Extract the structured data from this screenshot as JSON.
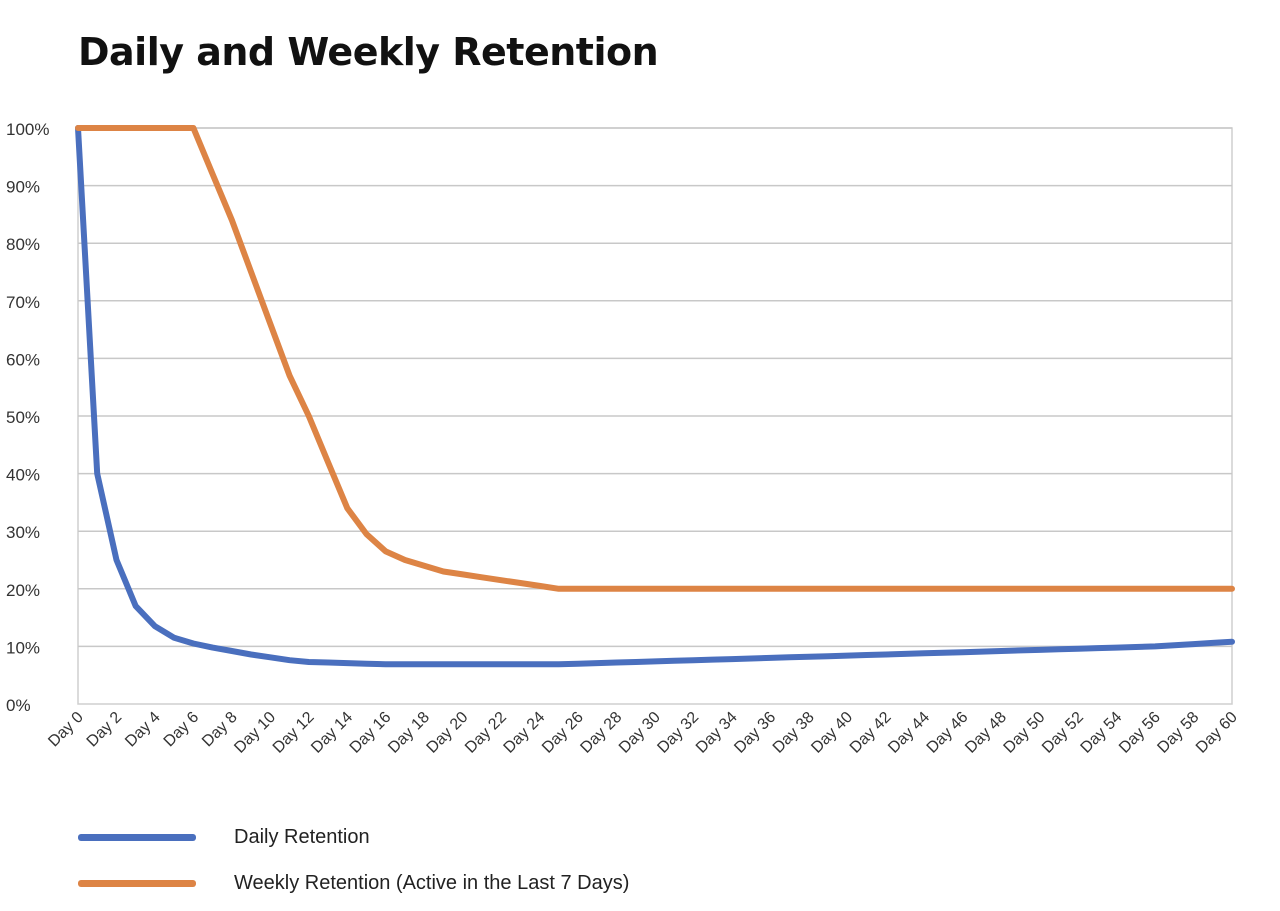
{
  "chart_data": {
    "type": "line",
    "title": "Daily and Weekly Retention",
    "xlabel": "",
    "ylabel": "",
    "ylim": [
      0,
      100
    ],
    "y_ticks": [
      "0%",
      "10%",
      "20%",
      "30%",
      "40%",
      "50%",
      "60%",
      "70%",
      "80%",
      "90%",
      "100%"
    ],
    "x_ticks": [
      "Day 0",
      "Day 2",
      "Day 4",
      "Day 6",
      "Day 8",
      "Day 10",
      "Day 12",
      "Day 14",
      "Day 16",
      "Day 18",
      "Day 20",
      "Day 22",
      "Day 24",
      "Day 26",
      "Day 28",
      "Day 30",
      "Day 32",
      "Day 34",
      "Day 36",
      "Day 38",
      "Day 40",
      "Day 42",
      "Day 44",
      "Day 46",
      "Day 48",
      "Day 50",
      "Day 52",
      "Day 54",
      "Day 56",
      "Day 58",
      "Day 60"
    ],
    "x": [
      0,
      1,
      2,
      3,
      4,
      5,
      6,
      7,
      8,
      9,
      10,
      11,
      12,
      13,
      14,
      15,
      16,
      17,
      18,
      19,
      20,
      21,
      22,
      23,
      24,
      25,
      26,
      27,
      28,
      29,
      30,
      31,
      32,
      33,
      34,
      35,
      36,
      37,
      38,
      39,
      40,
      41,
      42,
      43,
      44,
      45,
      46,
      47,
      48,
      49,
      50,
      51,
      52,
      53,
      54,
      55,
      56,
      57,
      58,
      59,
      60
    ],
    "grid": true,
    "legend_position": "bottom-left",
    "series": [
      {
        "name": "Daily Retention",
        "color": "#4a6fbe",
        "values": [
          100,
          40,
          25,
          17,
          13.5,
          11.5,
          10.5,
          9.8,
          9.2,
          8.6,
          8.1,
          7.6,
          7.3,
          7.2,
          7.1,
          7.0,
          6.9,
          6.9,
          6.9,
          6.9,
          6.9,
          6.9,
          6.9,
          6.9,
          6.9,
          6.9,
          7.0,
          7.1,
          7.2,
          7.3,
          7.4,
          7.5,
          7.6,
          7.7,
          7.8,
          7.9,
          8.0,
          8.1,
          8.2,
          8.3,
          8.4,
          8.5,
          8.6,
          8.7,
          8.8,
          8.9,
          9.0,
          9.1,
          9.2,
          9.3,
          9.4,
          9.5,
          9.6,
          9.7,
          9.8,
          9.9,
          10.0,
          10.2,
          10.4,
          10.6,
          10.8
        ]
      },
      {
        "name": "Weekly Retention (Active in the Last 7 Days)",
        "color": "#dd8445",
        "values": [
          100,
          100,
          100,
          100,
          100,
          100,
          100,
          92,
          84,
          75,
          66,
          57,
          50,
          42,
          34,
          29.5,
          26.5,
          25,
          24,
          23,
          22.5,
          22,
          21.5,
          21,
          20.5,
          20,
          20,
          20,
          20,
          20,
          20,
          20,
          20,
          20,
          20,
          20,
          20,
          20,
          20,
          20,
          20,
          20,
          20,
          20,
          20,
          20,
          20,
          20,
          20,
          20,
          20,
          20,
          20,
          20,
          20,
          20,
          20,
          20,
          20,
          20,
          20
        ]
      }
    ]
  }
}
